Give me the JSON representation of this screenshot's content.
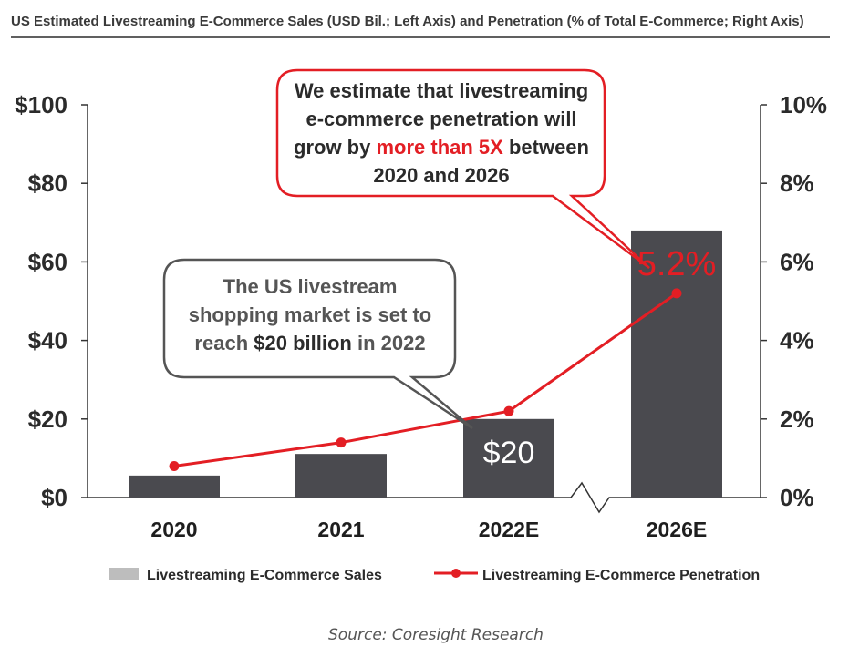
{
  "chart_data": {
    "type": "bar",
    "title": "US Estimated Livestreaming E-Commerce Sales (USD Bil.; Left Axis) and Penetration (% of Total E-Commerce; Right Axis)",
    "categories": [
      "2020",
      "2021",
      "2022E",
      "2026E"
    ],
    "series": [
      {
        "name": "Livestreaming E-Commerce Sales",
        "type": "bar",
        "axis": "left",
        "values": [
          5.6,
          11.1,
          20,
          68
        ]
      },
      {
        "name": "Livestreaming E-Commerce Penetration",
        "type": "line",
        "axis": "right",
        "values": [
          0.8,
          1.4,
          2.2,
          5.2
        ]
      }
    ],
    "y_left": {
      "ylim": [
        0,
        100
      ],
      "ticks": [
        "$0",
        "$20",
        "$40",
        "$60",
        "$80",
        "$100"
      ]
    },
    "y_right": {
      "ylim": [
        0,
        10
      ],
      "ticks": [
        "0%",
        "2%",
        "4%",
        "6%",
        "8%",
        "10%"
      ]
    },
    "bar_labels": {
      "2022E": "$20"
    },
    "point_labels": {
      "2026E": "5.2%"
    },
    "axis_break": "between 2022E and 2026E",
    "legend_position": "bottom",
    "colors": {
      "bar": "#4a4a4f",
      "line": "#e31e24",
      "callout_red": "#e31e24",
      "callout_gray": "#555555",
      "legend_bar": "#bdbdbd"
    }
  },
  "annotations": {
    "gray_callout": {
      "lines": [
        [
          {
            "t": "The US livestream",
            "bold": false
          }
        ],
        [
          {
            "t": "shopping market is set to",
            "bold": false
          }
        ],
        [
          {
            "t": "reach ",
            "bold": false
          },
          {
            "t": "$20 billion",
            "bold": true
          },
          {
            "t": " in 2022",
            "bold": false
          }
        ]
      ]
    },
    "red_callout": {
      "lines": [
        [
          {
            "t": "We estimate that livestreaming",
            "red": false
          }
        ],
        [
          {
            "t": "e-commerce penetration will",
            "red": false
          }
        ],
        [
          {
            "t": "grow by ",
            "red": false
          },
          {
            "t": "more than 5X",
            "red": true
          },
          {
            "t": " between",
            "red": false
          }
        ],
        [
          {
            "t": "2020 and 2026",
            "red": false
          }
        ]
      ]
    }
  },
  "source": "Source: Coresight Research"
}
